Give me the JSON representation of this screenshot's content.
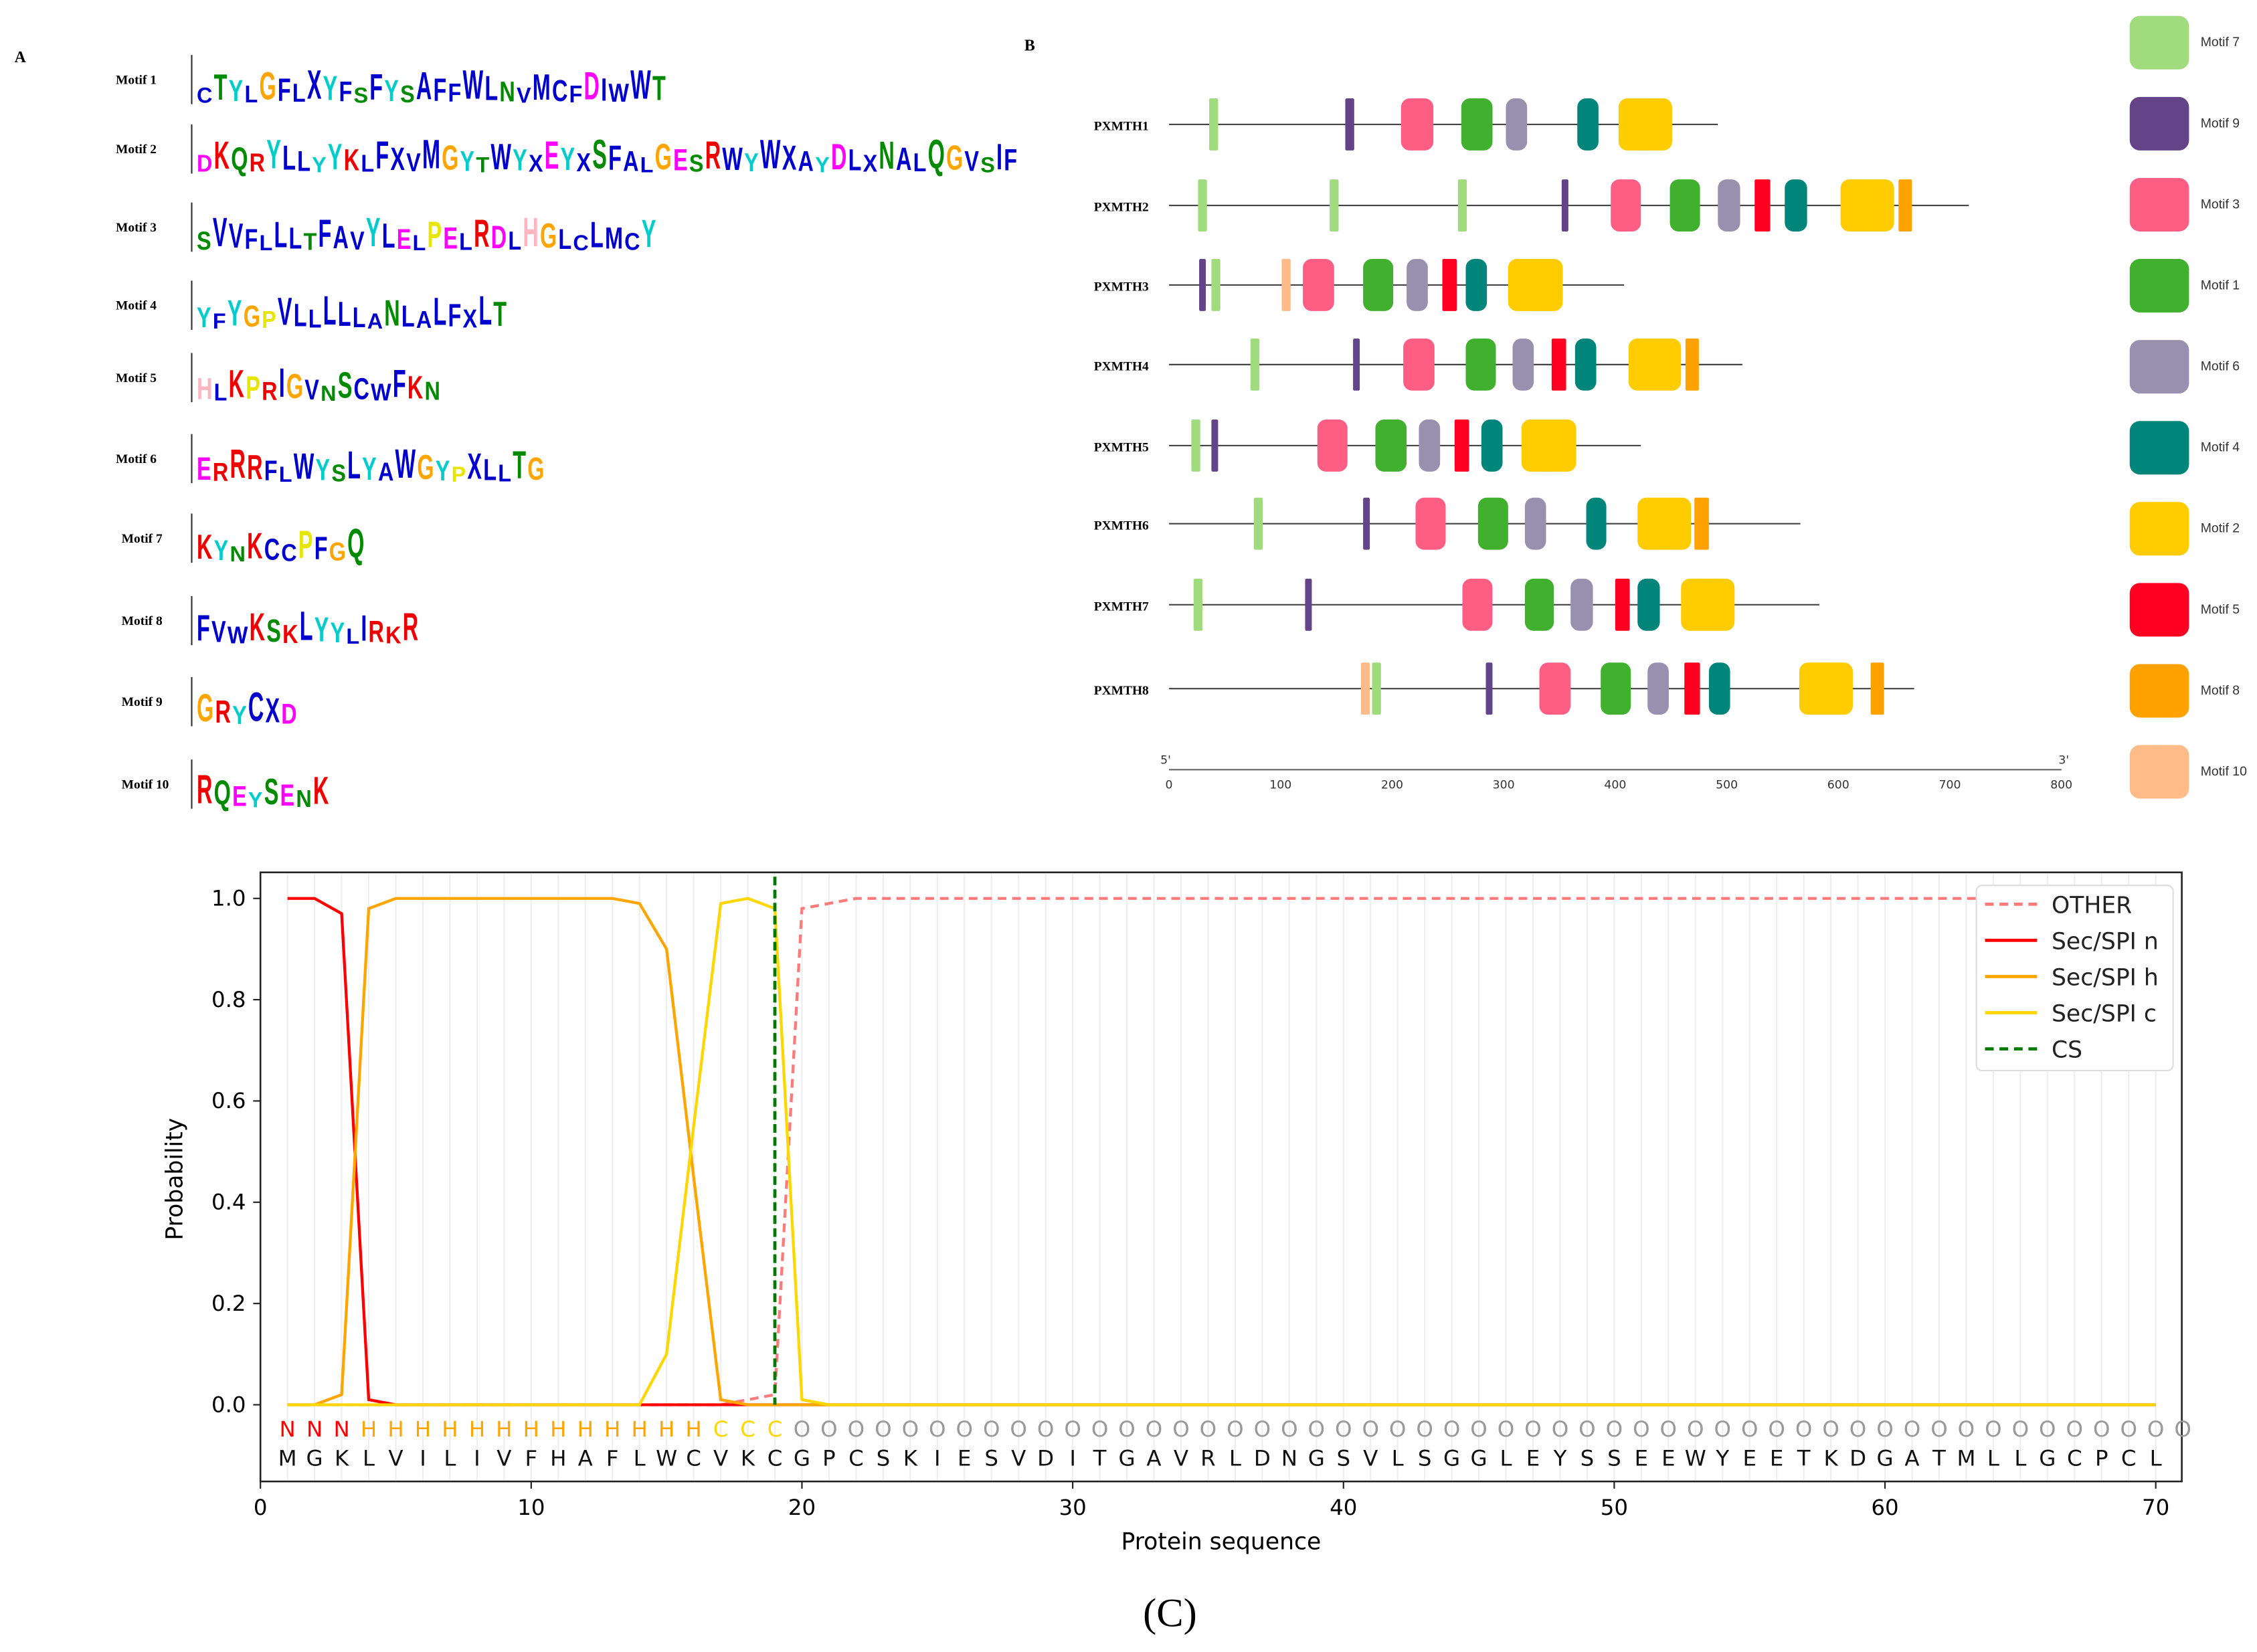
{
  "panels": {
    "a": "A",
    "b": "B",
    "caption": "(C)"
  },
  "motif_logos": [
    {
      "name": "Motif 1",
      "consensus": "CTYLGFLXYFSFYSAFFWLNVMCFDIWWT"
    },
    {
      "name": "Motif 2",
      "consensus": "DKQRYLLYYKLFXVMGYTWYXEYXSFALGESRWYWXAYDLXNALQGVSIF"
    },
    {
      "name": "Motif 3",
      "consensus": "SVVFLLLTFAVYLELPELRDLHGLCLMCY"
    },
    {
      "name": "Motif 4",
      "consensus": "YFYGPVLLLLLANLALFXLT"
    },
    {
      "name": "Motif 5",
      "consensus": "HLKPRIGVNSCWFKN"
    },
    {
      "name": "Motif 6",
      "consensus": "ERRRFLWYSLYAWGYPXLLTG"
    },
    {
      "name": "Motif 7",
      "consensus": "KYNKCCPFGQ"
    },
    {
      "name": "Motif 8",
      "consensus": "FVWKSKLYYLIRKR"
    },
    {
      "name": "Motif 9",
      "consensus": "GRYCXD"
    },
    {
      "name": "Motif 10",
      "consensus": "RQEYSENK"
    }
  ],
  "aa_colors": {
    "blue": "#0000cc",
    "green": "#008a00",
    "magenta": "#ff00ff",
    "red": "#ee0000",
    "pink": "#ffb6c1",
    "orange": "#ffa500",
    "yellow": "#e6e600",
    "cyan": "#00cccc"
  },
  "motif_legend": [
    {
      "name": "Motif 7",
      "color": "#a0db7e"
    },
    {
      "name": "Motif 9",
      "color": "#634488"
    },
    {
      "name": "Motif 3",
      "color": "#ff5e84"
    },
    {
      "name": "Motif 1",
      "color": "#40b02e"
    },
    {
      "name": "Motif 6",
      "color": "#9990b0"
    },
    {
      "name": "Motif 4",
      "color": "#00857a"
    },
    {
      "name": "Motif 2",
      "color": "#ffcc00"
    },
    {
      "name": "Motif 5",
      "color": "#ff0022"
    },
    {
      "name": "Motif 8",
      "color": "#ffa200"
    },
    {
      "name": "Motif 10",
      "color": "#ffbb88"
    }
  ],
  "motif_scale": {
    "start_label": "5'",
    "end_label": "3'",
    "ticks": [
      0,
      100,
      200,
      300,
      400,
      500,
      600,
      700,
      800
    ]
  },
  "proteins": [
    {
      "name": "PXMTH1",
      "length": 492,
      "motifs": [
        [
          "Motif 7",
          36,
          44
        ],
        [
          "Motif 9",
          158,
          166
        ],
        [
          "Motif 3",
          208,
          237
        ],
        [
          "Motif 1",
          262,
          290
        ],
        [
          "Motif 6",
          302,
          321
        ],
        [
          "Motif 4",
          366,
          385
        ],
        [
          "Motif 2",
          403,
          451
        ]
      ]
    },
    {
      "name": "PXMTH2",
      "length": 717,
      "motifs": [
        [
          "Motif 7",
          26,
          34
        ],
        [
          "Motif 7",
          144,
          152
        ],
        [
          "Motif 7",
          259,
          267
        ],
        [
          "Motif 9",
          352,
          358
        ],
        [
          "Motif 3",
          396,
          423
        ],
        [
          "Motif 1",
          449,
          476
        ],
        [
          "Motif 6",
          492,
          512
        ],
        [
          "Motif 5",
          525,
          539
        ],
        [
          "Motif 4",
          552,
          572
        ],
        [
          "Motif 2",
          602,
          650
        ],
        [
          "Motif 8",
          654,
          666
        ]
      ]
    },
    {
      "name": "PXMTH3",
      "length": 408,
      "motifs": [
        [
          "Motif 9",
          27,
          33
        ],
        [
          "Motif 7",
          38,
          46
        ],
        [
          "Motif 10",
          101,
          109
        ],
        [
          "Motif 3",
          120,
          148
        ],
        [
          "Motif 1",
          174,
          201
        ],
        [
          "Motif 6",
          213,
          232
        ],
        [
          "Motif 5",
          245,
          258
        ],
        [
          "Motif 4",
          266,
          285
        ],
        [
          "Motif 2",
          304,
          353
        ]
      ]
    },
    {
      "name": "PXMTH4",
      "length": 514,
      "motifs": [
        [
          "Motif 7",
          73,
          81
        ],
        [
          "Motif 9",
          165,
          171
        ],
        [
          "Motif 3",
          210,
          238
        ],
        [
          "Motif 1",
          266,
          293
        ],
        [
          "Motif 6",
          308,
          327
        ],
        [
          "Motif 5",
          343,
          356
        ],
        [
          "Motif 4",
          364,
          383
        ],
        [
          "Motif 2",
          412,
          459
        ],
        [
          "Motif 8",
          463,
          475
        ]
      ]
    },
    {
      "name": "PXMTH5",
      "length": 423,
      "motifs": [
        [
          "Motif 7",
          20,
          28
        ],
        [
          "Motif 9",
          38,
          44
        ],
        [
          "Motif 3",
          133,
          160
        ],
        [
          "Motif 1",
          185,
          213
        ],
        [
          "Motif 6",
          224,
          243
        ],
        [
          "Motif 5",
          256,
          269
        ],
        [
          "Motif 4",
          280,
          299
        ],
        [
          "Motif 2",
          316,
          365
        ]
      ]
    },
    {
      "name": "PXMTH6",
      "length": 566,
      "motifs": [
        [
          "Motif 7",
          76,
          84
        ],
        [
          "Motif 9",
          174,
          180
        ],
        [
          "Motif 3",
          221,
          248
        ],
        [
          "Motif 1",
          277,
          304
        ],
        [
          "Motif 6",
          319,
          338
        ],
        [
          "Motif 4",
          374,
          392
        ],
        [
          "Motif 2",
          420,
          468
        ],
        [
          "Motif 8",
          471,
          484
        ]
      ]
    },
    {
      "name": "PXMTH7",
      "length": 583,
      "motifs": [
        [
          "Motif 7",
          22,
          30
        ],
        [
          "Motif 9",
          122,
          128
        ],
        [
          "Motif 3",
          263,
          290
        ],
        [
          "Motif 1",
          319,
          345
        ],
        [
          "Motif 6",
          360,
          380
        ],
        [
          "Motif 5",
          400,
          413
        ],
        [
          "Motif 4",
          420,
          440
        ],
        [
          "Motif 2",
          459,
          507
        ]
      ]
    },
    {
      "name": "PXMTH8",
      "length": 668,
      "motifs": [
        [
          "Motif 10",
          172,
          180
        ],
        [
          "Motif 7",
          182,
          190
        ],
        [
          "Motif 9",
          284,
          290
        ],
        [
          "Motif 3",
          332,
          360
        ],
        [
          "Motif 1",
          387,
          414
        ],
        [
          "Motif 6",
          429,
          448
        ],
        [
          "Motif 5",
          462,
          476
        ],
        [
          "Motif 4",
          484,
          503
        ],
        [
          "Motif 2",
          565,
          613
        ],
        [
          "Motif 8",
          629,
          641
        ]
      ]
    }
  ],
  "chart_data": {
    "type": "line",
    "xlabel": "Protein sequence",
    "ylabel": "Probability",
    "xlim": [
      0,
      70
    ],
    "ylim": [
      -0.1,
      1.05
    ],
    "xticks": [
      0,
      10,
      20,
      30,
      40,
      50,
      60,
      70
    ],
    "yticks": [
      0.0,
      0.2,
      0.4,
      0.6,
      0.8,
      1.0
    ],
    "legend_position": "top-right",
    "x": [
      1,
      2,
      3,
      4,
      5,
      6,
      7,
      8,
      9,
      10,
      11,
      12,
      13,
      14,
      15,
      16,
      17,
      18,
      19,
      20,
      21,
      22,
      23,
      24,
      25,
      26,
      27,
      28,
      29,
      30,
      31,
      32,
      33,
      34,
      35,
      36,
      37,
      38,
      39,
      40,
      41,
      42,
      43,
      44,
      45,
      46,
      47,
      48,
      49,
      50,
      51,
      52,
      53,
      54,
      55,
      56,
      57,
      58,
      59,
      60,
      61,
      62,
      63,
      64,
      65,
      66,
      67,
      68,
      69,
      70
    ],
    "series": [
      {
        "name": "OTHER",
        "color": "#ff7b7b",
        "dash": true,
        "values": [
          0,
          0,
          0,
          0,
          0,
          0,
          0,
          0,
          0,
          0,
          0,
          0,
          0,
          0,
          0,
          0,
          0,
          0.01,
          0.02,
          0.98,
          0.99,
          1,
          1,
          1,
          1,
          1,
          1,
          1,
          1,
          1,
          1,
          1,
          1,
          1,
          1,
          1,
          1,
          1,
          1,
          1,
          1,
          1,
          1,
          1,
          1,
          1,
          1,
          1,
          1,
          1,
          1,
          1,
          1,
          1,
          1,
          1,
          1,
          1,
          1,
          1,
          1,
          1,
          1,
          1,
          1,
          1,
          1,
          1,
          1,
          1
        ]
      },
      {
        "name": "Sec/SPI n",
        "color": "#ff0000",
        "dash": false,
        "values": [
          1,
          1,
          0.97,
          0.01,
          0,
          0,
          0,
          0,
          0,
          0,
          0,
          0,
          0,
          0,
          0,
          0,
          0,
          0,
          0,
          0,
          0,
          0,
          0,
          0,
          0,
          0,
          0,
          0,
          0,
          0,
          0,
          0,
          0,
          0,
          0,
          0,
          0,
          0,
          0,
          0,
          0,
          0,
          0,
          0,
          0,
          0,
          0,
          0,
          0,
          0,
          0,
          0,
          0,
          0,
          0,
          0,
          0,
          0,
          0,
          0,
          0,
          0,
          0,
          0,
          0,
          0,
          0,
          0,
          0,
          0
        ]
      },
      {
        "name": "Sec/SPI h",
        "color": "#ffa500",
        "dash": false,
        "values": [
          0,
          0,
          0.02,
          0.98,
          1,
          1,
          1,
          1,
          1,
          1,
          1,
          1,
          1,
          0.99,
          0.9,
          0.45,
          0.01,
          0,
          0,
          0,
          0,
          0,
          0,
          0,
          0,
          0,
          0,
          0,
          0,
          0,
          0,
          0,
          0,
          0,
          0,
          0,
          0,
          0,
          0,
          0,
          0,
          0,
          0,
          0,
          0,
          0,
          0,
          0,
          0,
          0,
          0,
          0,
          0,
          0,
          0,
          0,
          0,
          0,
          0,
          0,
          0,
          0,
          0,
          0,
          0,
          0,
          0,
          0,
          0,
          0
        ]
      },
      {
        "name": "Sec/SPI c",
        "color": "#ffd700",
        "dash": false,
        "values": [
          0,
          0,
          0,
          0,
          0,
          0,
          0,
          0,
          0,
          0,
          0,
          0,
          0,
          0,
          0.1,
          0.55,
          0.99,
          1,
          0.98,
          0.01,
          0,
          0,
          0,
          0,
          0,
          0,
          0,
          0,
          0,
          0,
          0,
          0,
          0,
          0,
          0,
          0,
          0,
          0,
          0,
          0,
          0,
          0,
          0,
          0,
          0,
          0,
          0,
          0,
          0,
          0,
          0,
          0,
          0,
          0,
          0,
          0,
          0,
          0,
          0,
          0,
          0,
          0,
          0,
          0,
          0,
          0,
          0,
          0,
          0,
          0
        ]
      },
      {
        "name": "CS",
        "color": "#007a00",
        "dash": true,
        "position": 19
      }
    ],
    "region_labels": "NNNHHHHHHHHHHHHHCCCOOOOOOOOOOOOOOOOOOOOOOOOOOOOOOOOOOOOOOOOOOOOOOOOOOOO",
    "region_colors": {
      "N": "#ff0000",
      "H": "#ffa500",
      "C": "#ffd700",
      "O": "#999999"
    },
    "sequence": "MGKLVILIVFHAFLWCVKCGPCSKIESVDITGAVRLDNGSVLSGGLEYSSEEWYEETKDGATMLLGCPCL"
  }
}
